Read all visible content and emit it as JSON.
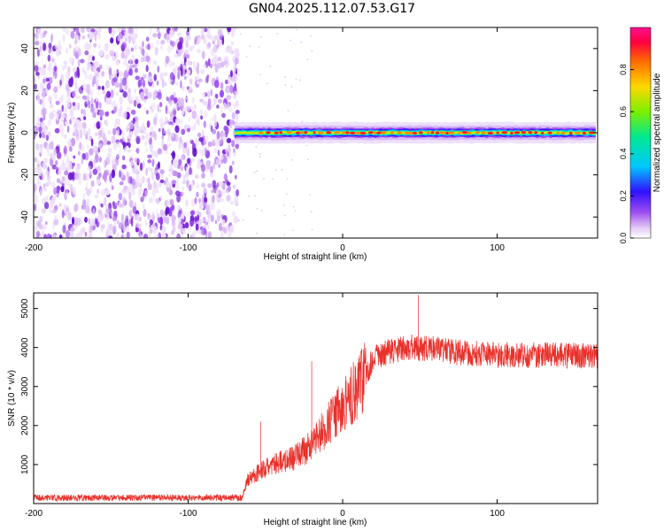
{
  "title": "GN04.2025.112.07.53.G17",
  "colors": {
    "snr_line": "#e8312b",
    "spectral_cmap": [
      "#ffffff",
      "#e3c8f5",
      "#b070f0",
      "#7a1fd8",
      "#1a20ff",
      "#00c8ff",
      "#00e890",
      "#7cf000",
      "#ffd800",
      "#ff6a00",
      "#ff0040",
      "#ff1090"
    ]
  },
  "chart_data": [
    {
      "type": "heatmap",
      "title": "GN04.2025.112.07.53.G17",
      "xlabel": "Height of straight line (km)",
      "ylabel": "Frequency (Hz)",
      "xlim": [
        -200,
        165
      ],
      "ylim": [
        -50,
        50
      ],
      "x_ticks": [
        -200,
        -100,
        0,
        100
      ],
      "y_ticks": [
        -40,
        -20,
        0,
        20,
        40
      ],
      "colorbar": {
        "label": "Normalized spectral amplitude",
        "range": [
          0.0,
          1.0
        ],
        "ticks": [
          "0.0",
          "0.2",
          "0.4",
          "0.6",
          "0.8"
        ]
      },
      "noise_region_x": [
        -200,
        -68
      ],
      "signal_band": {
        "x_start": -70,
        "center_hz": 0,
        "peak_amplitude": 0.9,
        "points": [
          [
            -70,
            0
          ],
          [
            -40,
            0
          ],
          [
            0,
            0
          ],
          [
            50,
            0
          ],
          [
            100,
            0
          ],
          [
            165,
            0
          ]
        ]
      },
      "grid": false,
      "legend": "none"
    },
    {
      "type": "line",
      "xlabel": "Height of straight line (km)",
      "ylabel": "SNR (10 * v/v)",
      "xlim": [
        -200,
        165
      ],
      "ylim": [
        0,
        5400
      ],
      "x_ticks": [
        -200,
        -100,
        0,
        100
      ],
      "y_ticks": [
        1000,
        2000,
        3000,
        4000,
        5000
      ],
      "series": [
        {
          "x": [
            -200,
            -150,
            -100,
            -80,
            -65,
            -62,
            -55,
            -45,
            -30,
            -20,
            -10,
            0,
            10,
            20,
            30,
            40,
            50,
            60,
            80,
            100,
            120,
            140,
            165
          ],
          "y": [
            150,
            150,
            150,
            150,
            150,
            600,
            800,
            1000,
            1200,
            1500,
            2000,
            2500,
            3000,
            3700,
            3900,
            4000,
            4000,
            3950,
            3850,
            3800,
            3800,
            3800,
            3800
          ]
        }
      ],
      "annotations_peaks": [
        [
          -53,
          2100
        ],
        [
          -20,
          3650
        ],
        [
          49,
          5350
        ]
      ],
      "grid": false,
      "legend": "none"
    }
  ]
}
